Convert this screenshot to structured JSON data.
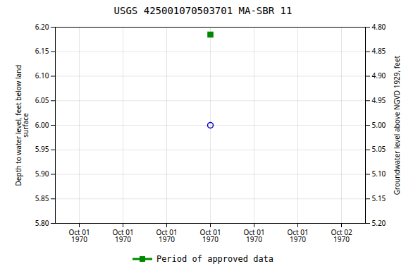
{
  "chart_data": {
    "type": "scatter",
    "title": "USGS 425001070503701 MA-SBR   11",
    "categories": [
      "Oct 01\n1970",
      "Oct 01\n1970",
      "Oct 01\n1970",
      "Oct 01\n1970",
      "Oct 01\n1970",
      "Oct 01\n1970",
      "Oct 02\n1970"
    ],
    "y_label": "Depth to water level, feet below land\nsurface",
    "y2_label": "Groundwater level above NGVD 1929, feet",
    "ylim": [
      5.8,
      6.2
    ],
    "yticks": [
      {
        "value": 5.8,
        "label": "5.80"
      },
      5.85,
      {
        "value": 5.9,
        "label": "5.90"
      },
      5.95,
      {
        "value": 6.0,
        "label": "6.00"
      },
      6.05,
      {
        "value": 6.1,
        "label": "6.10"
      },
      6.15,
      {
        "value": 6.2,
        "label": "6.20"
      }
    ],
    "y2lim": [
      5.2,
      4.8
    ],
    "y2ticks": [
      {
        "value": 5.2,
        "label": "5.20"
      },
      5.15,
      {
        "value": 5.1,
        "label": "5.10"
      },
      5.05,
      {
        "value": 5.0,
        "label": "5.00"
      },
      4.95,
      {
        "value": 4.9,
        "label": "4.90"
      },
      4.85,
      {
        "value": 4.8,
        "label": "4.80"
      }
    ],
    "series": [
      {
        "color": "#0000bb",
        "marker": "circle",
        "values": [
          null,
          null,
          null,
          6.0,
          null,
          null,
          null
        ]
      },
      {
        "name": "Period of approved data",
        "color": "#008800",
        "marker": "square",
        "values": [
          null,
          null,
          null,
          6.185,
          null,
          null,
          null
        ]
      }
    ],
    "grid": true,
    "legend": "bottom"
  }
}
